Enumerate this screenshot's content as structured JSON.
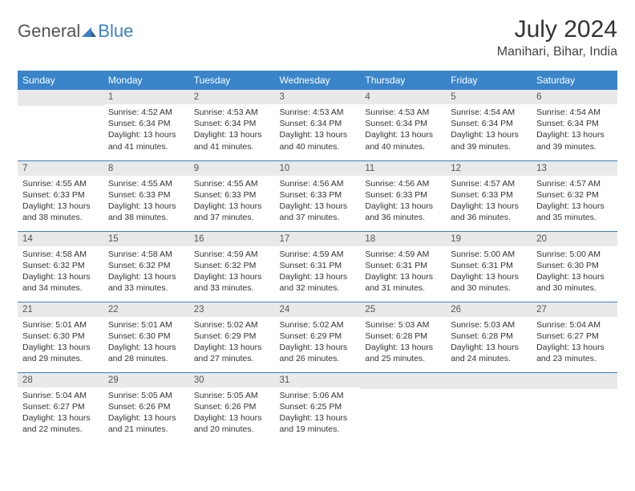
{
  "logo": {
    "word1": "General",
    "word2": "Blue"
  },
  "title": "July 2024",
  "location": "Manihari, Bihar, India",
  "day_headers": [
    "Sunday",
    "Monday",
    "Tuesday",
    "Wednesday",
    "Thursday",
    "Friday",
    "Saturday"
  ],
  "colors": {
    "header_bg": "#3a85c9",
    "header_text": "#ffffff",
    "daynum_bg": "#e9e9e9",
    "row_divider": "#3a7fc4",
    "logo_dark": "#555555",
    "logo_blue": "#3a7fc4",
    "body_text": "#333333"
  },
  "typography": {
    "title_size_pt": 22,
    "location_size_pt": 12,
    "header_size_pt": 9,
    "daynum_size_pt": 8.5,
    "cell_size_pt": 8
  },
  "layout": {
    "columns": 7,
    "rows": 5,
    "first_weekday": "Sunday",
    "first_day_column": 1
  },
  "weeks": [
    [
      null,
      {
        "n": "1",
        "sunrise": "Sunrise: 4:52 AM",
        "sunset": "Sunset: 6:34 PM",
        "day1": "Daylight: 13 hours",
        "day2": "and 41 minutes."
      },
      {
        "n": "2",
        "sunrise": "Sunrise: 4:53 AM",
        "sunset": "Sunset: 6:34 PM",
        "day1": "Daylight: 13 hours",
        "day2": "and 41 minutes."
      },
      {
        "n": "3",
        "sunrise": "Sunrise: 4:53 AM",
        "sunset": "Sunset: 6:34 PM",
        "day1": "Daylight: 13 hours",
        "day2": "and 40 minutes."
      },
      {
        "n": "4",
        "sunrise": "Sunrise: 4:53 AM",
        "sunset": "Sunset: 6:34 PM",
        "day1": "Daylight: 13 hours",
        "day2": "and 40 minutes."
      },
      {
        "n": "5",
        "sunrise": "Sunrise: 4:54 AM",
        "sunset": "Sunset: 6:34 PM",
        "day1": "Daylight: 13 hours",
        "day2": "and 39 minutes."
      },
      {
        "n": "6",
        "sunrise": "Sunrise: 4:54 AM",
        "sunset": "Sunset: 6:34 PM",
        "day1": "Daylight: 13 hours",
        "day2": "and 39 minutes."
      }
    ],
    [
      {
        "n": "7",
        "sunrise": "Sunrise: 4:55 AM",
        "sunset": "Sunset: 6:33 PM",
        "day1": "Daylight: 13 hours",
        "day2": "and 38 minutes."
      },
      {
        "n": "8",
        "sunrise": "Sunrise: 4:55 AM",
        "sunset": "Sunset: 6:33 PM",
        "day1": "Daylight: 13 hours",
        "day2": "and 38 minutes."
      },
      {
        "n": "9",
        "sunrise": "Sunrise: 4:55 AM",
        "sunset": "Sunset: 6:33 PM",
        "day1": "Daylight: 13 hours",
        "day2": "and 37 minutes."
      },
      {
        "n": "10",
        "sunrise": "Sunrise: 4:56 AM",
        "sunset": "Sunset: 6:33 PM",
        "day1": "Daylight: 13 hours",
        "day2": "and 37 minutes."
      },
      {
        "n": "11",
        "sunrise": "Sunrise: 4:56 AM",
        "sunset": "Sunset: 6:33 PM",
        "day1": "Daylight: 13 hours",
        "day2": "and 36 minutes."
      },
      {
        "n": "12",
        "sunrise": "Sunrise: 4:57 AM",
        "sunset": "Sunset: 6:33 PM",
        "day1": "Daylight: 13 hours",
        "day2": "and 36 minutes."
      },
      {
        "n": "13",
        "sunrise": "Sunrise: 4:57 AM",
        "sunset": "Sunset: 6:32 PM",
        "day1": "Daylight: 13 hours",
        "day2": "and 35 minutes."
      }
    ],
    [
      {
        "n": "14",
        "sunrise": "Sunrise: 4:58 AM",
        "sunset": "Sunset: 6:32 PM",
        "day1": "Daylight: 13 hours",
        "day2": "and 34 minutes."
      },
      {
        "n": "15",
        "sunrise": "Sunrise: 4:58 AM",
        "sunset": "Sunset: 6:32 PM",
        "day1": "Daylight: 13 hours",
        "day2": "and 33 minutes."
      },
      {
        "n": "16",
        "sunrise": "Sunrise: 4:59 AM",
        "sunset": "Sunset: 6:32 PM",
        "day1": "Daylight: 13 hours",
        "day2": "and 33 minutes."
      },
      {
        "n": "17",
        "sunrise": "Sunrise: 4:59 AM",
        "sunset": "Sunset: 6:31 PM",
        "day1": "Daylight: 13 hours",
        "day2": "and 32 minutes."
      },
      {
        "n": "18",
        "sunrise": "Sunrise: 4:59 AM",
        "sunset": "Sunset: 6:31 PM",
        "day1": "Daylight: 13 hours",
        "day2": "and 31 minutes."
      },
      {
        "n": "19",
        "sunrise": "Sunrise: 5:00 AM",
        "sunset": "Sunset: 6:31 PM",
        "day1": "Daylight: 13 hours",
        "day2": "and 30 minutes."
      },
      {
        "n": "20",
        "sunrise": "Sunrise: 5:00 AM",
        "sunset": "Sunset: 6:30 PM",
        "day1": "Daylight: 13 hours",
        "day2": "and 30 minutes."
      }
    ],
    [
      {
        "n": "21",
        "sunrise": "Sunrise: 5:01 AM",
        "sunset": "Sunset: 6:30 PM",
        "day1": "Daylight: 13 hours",
        "day2": "and 29 minutes."
      },
      {
        "n": "22",
        "sunrise": "Sunrise: 5:01 AM",
        "sunset": "Sunset: 6:30 PM",
        "day1": "Daylight: 13 hours",
        "day2": "and 28 minutes."
      },
      {
        "n": "23",
        "sunrise": "Sunrise: 5:02 AM",
        "sunset": "Sunset: 6:29 PM",
        "day1": "Daylight: 13 hours",
        "day2": "and 27 minutes."
      },
      {
        "n": "24",
        "sunrise": "Sunrise: 5:02 AM",
        "sunset": "Sunset: 6:29 PM",
        "day1": "Daylight: 13 hours",
        "day2": "and 26 minutes."
      },
      {
        "n": "25",
        "sunrise": "Sunrise: 5:03 AM",
        "sunset": "Sunset: 6:28 PM",
        "day1": "Daylight: 13 hours",
        "day2": "and 25 minutes."
      },
      {
        "n": "26",
        "sunrise": "Sunrise: 5:03 AM",
        "sunset": "Sunset: 6:28 PM",
        "day1": "Daylight: 13 hours",
        "day2": "and 24 minutes."
      },
      {
        "n": "27",
        "sunrise": "Sunrise: 5:04 AM",
        "sunset": "Sunset: 6:27 PM",
        "day1": "Daylight: 13 hours",
        "day2": "and 23 minutes."
      }
    ],
    [
      {
        "n": "28",
        "sunrise": "Sunrise: 5:04 AM",
        "sunset": "Sunset: 6:27 PM",
        "day1": "Daylight: 13 hours",
        "day2": "and 22 minutes."
      },
      {
        "n": "29",
        "sunrise": "Sunrise: 5:05 AM",
        "sunset": "Sunset: 6:26 PM",
        "day1": "Daylight: 13 hours",
        "day2": "and 21 minutes."
      },
      {
        "n": "30",
        "sunrise": "Sunrise: 5:05 AM",
        "sunset": "Sunset: 6:26 PM",
        "day1": "Daylight: 13 hours",
        "day2": "and 20 minutes."
      },
      {
        "n": "31",
        "sunrise": "Sunrise: 5:06 AM",
        "sunset": "Sunset: 6:25 PM",
        "day1": "Daylight: 13 hours",
        "day2": "and 19 minutes."
      },
      null,
      null,
      null
    ]
  ]
}
